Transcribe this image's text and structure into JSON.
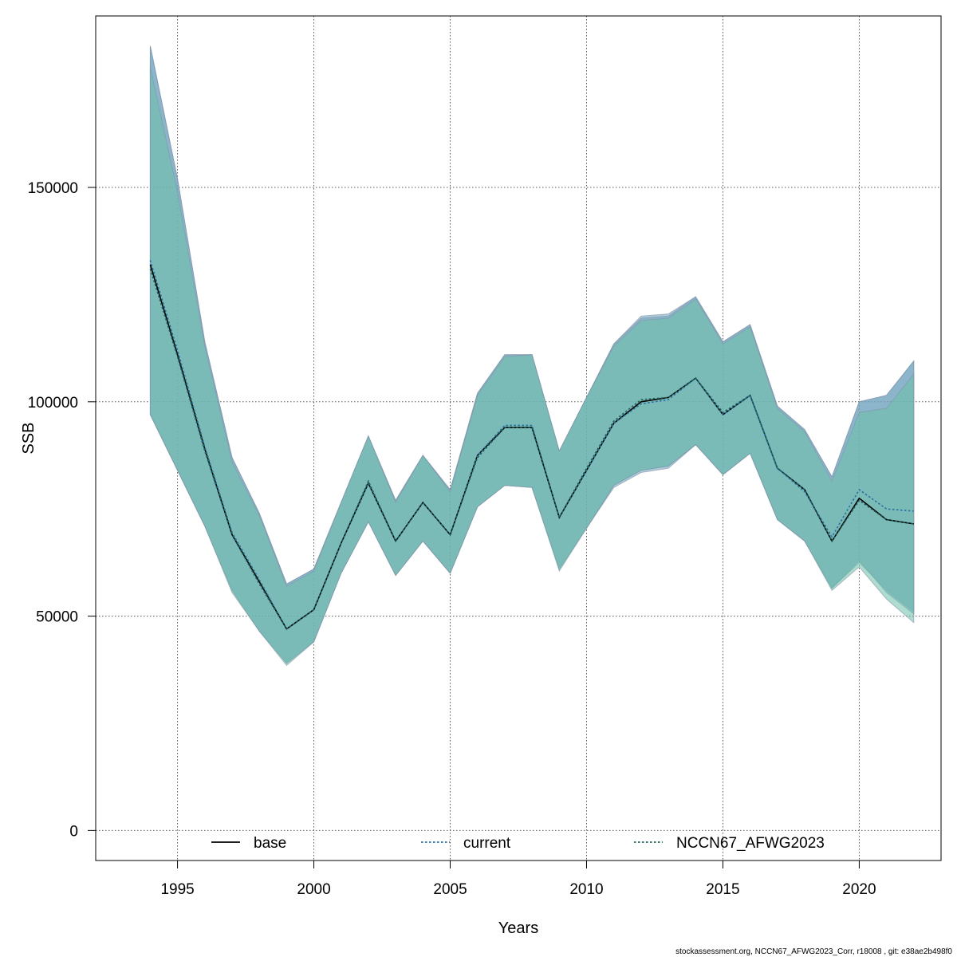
{
  "chart_data": {
    "type": "line",
    "xlabel": "Years",
    "ylabel": "SSB",
    "xlim": [
      1992.0,
      2023.0
    ],
    "ylim": [
      -7000,
      190000
    ],
    "x_ticks": [
      1995,
      2000,
      2005,
      2010,
      2015,
      2020
    ],
    "x_tick_labels": [
      "1995",
      "2000",
      "2005",
      "2010",
      "2015",
      "2020"
    ],
    "y_ticks": [
      0,
      50000,
      100000,
      150000
    ],
    "y_tick_labels": [
      "0",
      "50000",
      "100000",
      "150000"
    ],
    "grid": true,
    "legend_position": "bottom",
    "x": [
      1994,
      1995,
      1996,
      1997,
      1998,
      1999,
      2000,
      2001,
      2002,
      2003,
      2004,
      2005,
      2006,
      2007,
      2008,
      2009,
      2010,
      2011,
      2012,
      2013,
      2014,
      2015,
      2016,
      2017,
      2018,
      2019,
      2020,
      2021,
      2022
    ],
    "series": [
      {
        "name": "base",
        "line_color": "#000000",
        "line_style": "solid",
        "band_color": "#6fa3bf",
        "values": [
          132000,
          111000,
          89000,
          69000,
          58000,
          47000,
          51500,
          67000,
          81000,
          67500,
          76500,
          69000,
          87500,
          94000,
          94000,
          73000,
          84000,
          95000,
          100000,
          101000,
          105500,
          97000,
          101500,
          84500,
          79500,
          67500,
          77500,
          72500,
          71500
        ],
        "lower": [
          97000,
          84000,
          71000,
          56000,
          46500,
          39000,
          44000,
          60000,
          72000,
          59500,
          67500,
          60000,
          75500,
          80500,
          80000,
          61000,
          70500,
          80500,
          84000,
          85000,
          90000,
          83000,
          88000,
          72500,
          67500,
          56500,
          62500,
          56000,
          51000
        ],
        "upper": [
          183000,
          152000,
          114000,
          87000,
          74000,
          57500,
          61000,
          76500,
          92000,
          77000,
          87500,
          79500,
          102000,
          111000,
          111000,
          88500,
          101000,
          113500,
          120000,
          120500,
          124500,
          114000,
          118000,
          99000,
          93500,
          82500,
          100000,
          101500,
          109500
        ]
      },
      {
        "name": "current",
        "line_color": "#2b6f9e",
        "line_style": "dotted",
        "band_color": "#6fa3bf",
        "values": [
          133000,
          112000,
          89500,
          69500,
          58500,
          47000,
          51500,
          67000,
          81000,
          67500,
          76500,
          69000,
          87500,
          94500,
          94500,
          73000,
          84000,
          95000,
          99500,
          100500,
          105500,
          97000,
          101500,
          84500,
          79000,
          68500,
          79500,
          75000,
          74500
        ],
        "lower": [
          97000,
          84000,
          71000,
          56000,
          46500,
          39000,
          44000,
          60000,
          72000,
          59500,
          67500,
          60000,
          75500,
          80500,
          80000,
          61000,
          70500,
          80000,
          83500,
          84500,
          90000,
          83000,
          88000,
          72500,
          67500,
          56500,
          63000,
          55500,
          50500
        ],
        "upper": [
          183000,
          152000,
          114000,
          87000,
          74000,
          57500,
          61000,
          76500,
          92000,
          77000,
          87500,
          79500,
          102000,
          111000,
          111000,
          88500,
          101000,
          113500,
          119500,
          120000,
          124500,
          114000,
          118000,
          99000,
          93500,
          82500,
          100000,
          101500,
          109500
        ]
      },
      {
        "name": "NCCN67_AFWG2023",
        "line_color": "#1f5f57",
        "line_style": "dotted",
        "band_color": "#6cc0a8",
        "values": [
          131000,
          110500,
          88500,
          69000,
          57500,
          47000,
          51500,
          67000,
          81500,
          67500,
          76500,
          69000,
          87000,
          94000,
          94000,
          73000,
          84500,
          95500,
          100500,
          101000,
          105500,
          97500,
          101500,
          84500,
          79500,
          67500,
          77000,
          72500,
          71500
        ],
        "lower": [
          97000,
          84000,
          71000,
          55500,
          46500,
          38500,
          44000,
          60000,
          72000,
          59500,
          67500,
          60000,
          75500,
          80500,
          80000,
          60500,
          70500,
          80500,
          84000,
          85000,
          90000,
          83000,
          88000,
          72500,
          67500,
          56000,
          61500,
          54000,
          48500
        ],
        "upper": [
          178000,
          149000,
          113000,
          86000,
          73500,
          57000,
          60500,
          76500,
          92000,
          76500,
          87500,
          79000,
          101500,
          110500,
          111000,
          88500,
          101000,
          113000,
          119000,
          119500,
          124000,
          113500,
          117500,
          98500,
          93000,
          81500,
          97500,
          98500,
          106500
        ]
      }
    ]
  },
  "footer": "stockassessment.org, NCCN67_AFWG2023_Corr, r18008 , git: e38ae2b498f0"
}
